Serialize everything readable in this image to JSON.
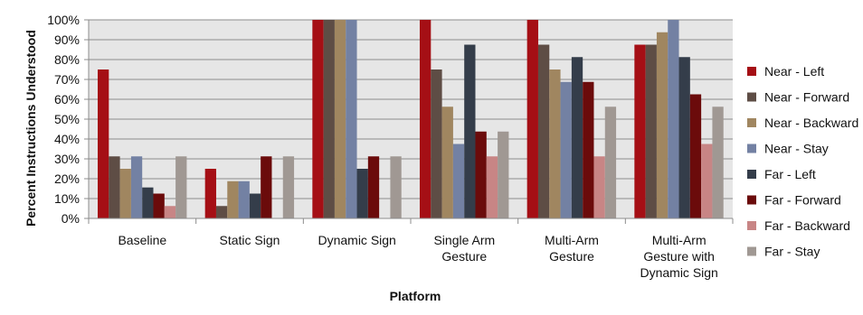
{
  "chart_data": {
    "type": "bar",
    "xlabel": "Platform",
    "ylabel": "Percent Instructions Understood",
    "ylim": [
      0,
      100
    ],
    "yticks": [
      "0%",
      "10%",
      "20%",
      "30%",
      "40%",
      "50%",
      "60%",
      "70%",
      "80%",
      "90%",
      "100%"
    ],
    "grid": true,
    "legend_position": "right",
    "categories": [
      [
        "Baseline"
      ],
      [
        "Static Sign"
      ],
      [
        "Dynamic Sign"
      ],
      [
        "Single Arm",
        "Gesture"
      ],
      [
        "Multi-Arm",
        "Gesture"
      ],
      [
        "Multi-Arm",
        "Gesture with",
        "Dynamic Sign"
      ]
    ],
    "series": [
      {
        "name": "Near - Left",
        "color": "#a50f15",
        "values": [
          75,
          25,
          100,
          100,
          100,
          87.5
        ]
      },
      {
        "name": "Near - Forward",
        "color": "#5e4d45",
        "values": [
          31.25,
          6.25,
          100,
          75,
          87.5,
          87.5
        ]
      },
      {
        "name": "Near - Backward",
        "color": "#a08660",
        "values": [
          25,
          18.75,
          100,
          56.25,
          75,
          93.75
        ]
      },
      {
        "name": "Near - Stay",
        "color": "#7381a3",
        "values": [
          31.25,
          18.75,
          100,
          37.5,
          68.75,
          100
        ]
      },
      {
        "name": "Far - Left",
        "color": "#343d4a",
        "values": [
          15.6,
          12.5,
          25,
          87.5,
          81.25,
          81.25
        ]
      },
      {
        "name": "Far - Forward",
        "color": "#6b0b0b",
        "values": [
          12.5,
          31.25,
          31.25,
          43.75,
          68.75,
          62.5
        ]
      },
      {
        "name": "Far - Backward",
        "color": "#c88585",
        "values": [
          6.25,
          0,
          0,
          31.25,
          31.25,
          37.5
        ]
      },
      {
        "name": "Far - Stay",
        "color": "#a09893",
        "values": [
          31.25,
          31.25,
          31.25,
          43.75,
          56.25,
          56.25
        ]
      }
    ]
  }
}
